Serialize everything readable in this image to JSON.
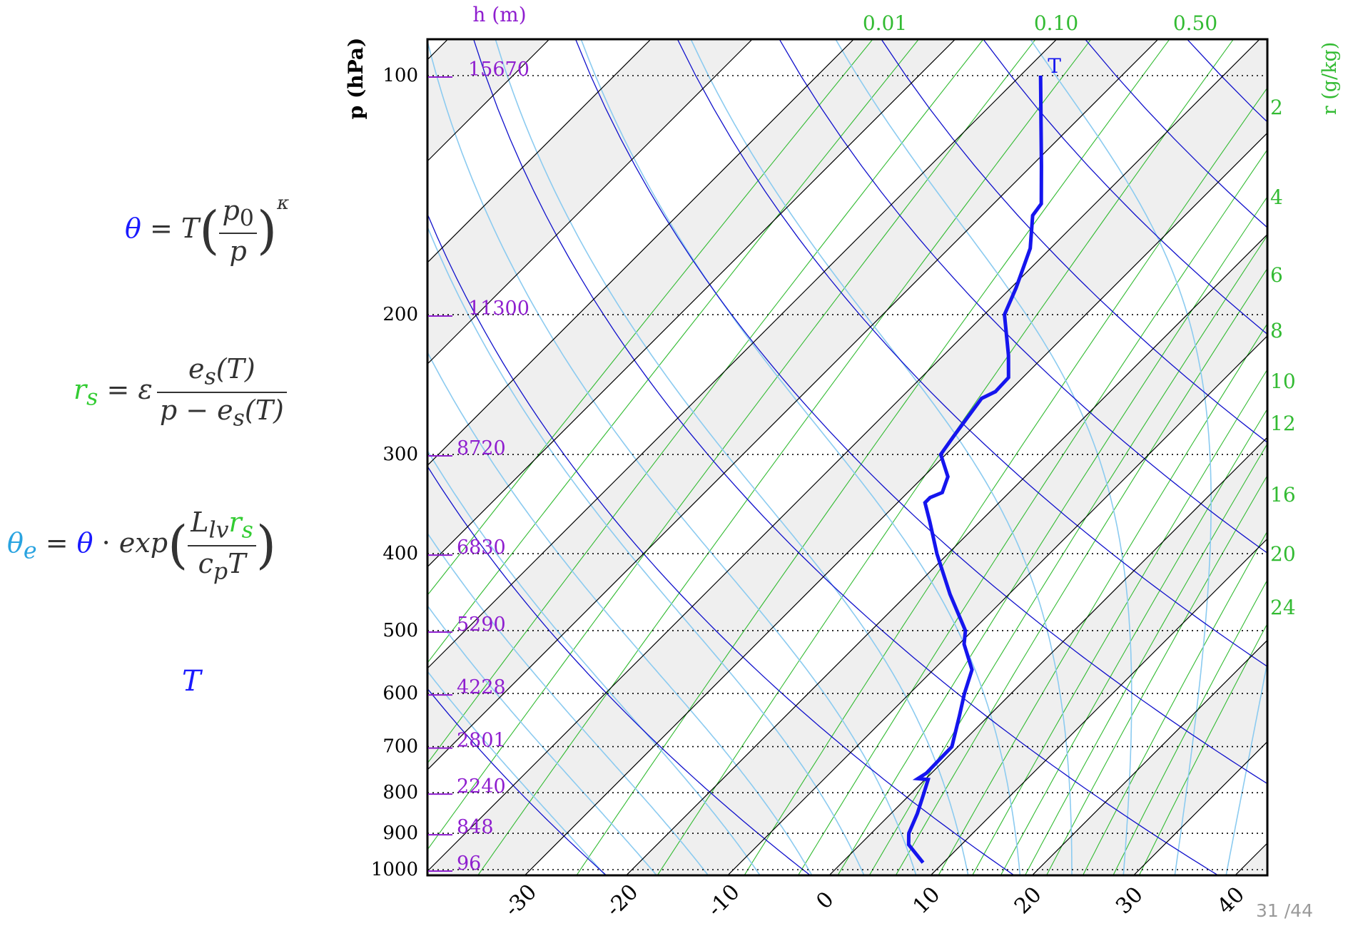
{
  "equations": {
    "theta": {
      "lhs": "θ",
      "eq": "=",
      "T": "T",
      "num": "p",
      "num_sub": "0",
      "den": "p",
      "exp": "κ"
    },
    "rs": {
      "lhs": "r",
      "lhs_sub": "s",
      "eq": "= ε",
      "num": "e",
      "num_sub": "s",
      "num_arg": "(T)",
      "den_pre": "p − e",
      "den_sub": "s",
      "den_arg": "(T)"
    },
    "theta_e": {
      "lhs": "θ",
      "lhs_sub": "e",
      "eq": "=",
      "theta": "θ",
      "dot": "·",
      "func": "exp",
      "num_L": "L",
      "num_L_sub": "lv",
      "num_r": "r",
      "num_r_sub": "s",
      "den_c": "c",
      "den_c_sub": "p",
      "den_T": "T"
    },
    "T_label": "T"
  },
  "colors": {
    "theta": "#1a1aff",
    "rs": "#33cc33",
    "theta_e": "#29a3e0",
    "T": "#1a1aff",
    "height": "#8f1fcf",
    "isotherm": "#000000",
    "dry_adiabat": "#1111cc",
    "moist_adiabat": "#8ccbf0",
    "mixing_ratio": "#33bb33",
    "sounding": "#1515ee",
    "band": "#efefef"
  },
  "page_number": "31 /44",
  "chart_data": {
    "type": "skew-T log-p",
    "xlabel": "",
    "ylabel": "p (hPa)",
    "top_label": "h (m)",
    "right_label": "r (g/kg)",
    "x_ticks": [
      "-30",
      "-20",
      "-10",
      "0",
      "10",
      "20",
      "30",
      "40"
    ],
    "xlim": [
      -40,
      40
    ],
    "ylim": [
      1000,
      100
    ],
    "y_scale": "log",
    "pressure_levels": [
      {
        "p": 100,
        "label": "100",
        "h": "15670"
      },
      {
        "p": 200,
        "label": "200",
        "h": "11300"
      },
      {
        "p": 300,
        "label": "300",
        "h": "8720"
      },
      {
        "p": 400,
        "label": "400",
        "h": "6830"
      },
      {
        "p": 500,
        "label": "500",
        "h": "5290"
      },
      {
        "p": 600,
        "label": "600",
        "h": "4228"
      },
      {
        "p": 700,
        "label": "700",
        "h": "2801"
      },
      {
        "p": 800,
        "label": "800",
        "h": "2240"
      },
      {
        "p": 900,
        "label": "900",
        "h": "848"
      },
      {
        "p": 1000,
        "label": "1000",
        "h": "96"
      }
    ],
    "mixing_ratio_top_labels": [
      "0.01",
      "0.10",
      "0.50"
    ],
    "mixing_ratio_right_labels": [
      "2",
      "4",
      "6",
      "8",
      "10",
      "12",
      "16",
      "20",
      "24"
    ],
    "isotherm_spacing": 10,
    "sounding_T_label": "T",
    "sounding": [
      {
        "p": 980,
        "T": 8.0
      },
      {
        "p": 930,
        "T": 4.8
      },
      {
        "p": 900,
        "T": 3.7
      },
      {
        "p": 850,
        "T": 2.6
      },
      {
        "p": 800,
        "T": 1.2
      },
      {
        "p": 770,
        "T": 0.3
      },
      {
        "p": 768,
        "T": -0.8
      },
      {
        "p": 756,
        "T": -0.5
      },
      {
        "p": 700,
        "T": -0.6
      },
      {
        "p": 640,
        "T": -2.9
      },
      {
        "p": 600,
        "T": -4.6
      },
      {
        "p": 560,
        "T": -6.2
      },
      {
        "p": 520,
        "T": -9.5
      },
      {
        "p": 500,
        "T": -10.7
      },
      {
        "p": 450,
        "T": -15.8
      },
      {
        "p": 400,
        "T": -21.1
      },
      {
        "p": 365,
        "T": -24.9
      },
      {
        "p": 345,
        "T": -27.3
      },
      {
        "p": 340,
        "T": -27.3
      },
      {
        "p": 335,
        "T": -26.6
      },
      {
        "p": 320,
        "T": -27.6
      },
      {
        "p": 300,
        "T": -30.5
      },
      {
        "p": 285,
        "T": -31.0
      },
      {
        "p": 255,
        "T": -32.0
      },
      {
        "p": 250,
        "T": -31.3
      },
      {
        "p": 240,
        "T": -31.4
      },
      {
        "p": 225,
        "T": -33.6
      },
      {
        "p": 200,
        "T": -38.0
      },
      {
        "p": 185,
        "T": -39.5
      },
      {
        "p": 165,
        "T": -42.0
      },
      {
        "p": 150,
        "T": -45.0
      },
      {
        "p": 145,
        "T": -45.3
      },
      {
        "p": 130,
        "T": -49.0
      },
      {
        "p": 100,
        "T": -58.0
      }
    ]
  }
}
